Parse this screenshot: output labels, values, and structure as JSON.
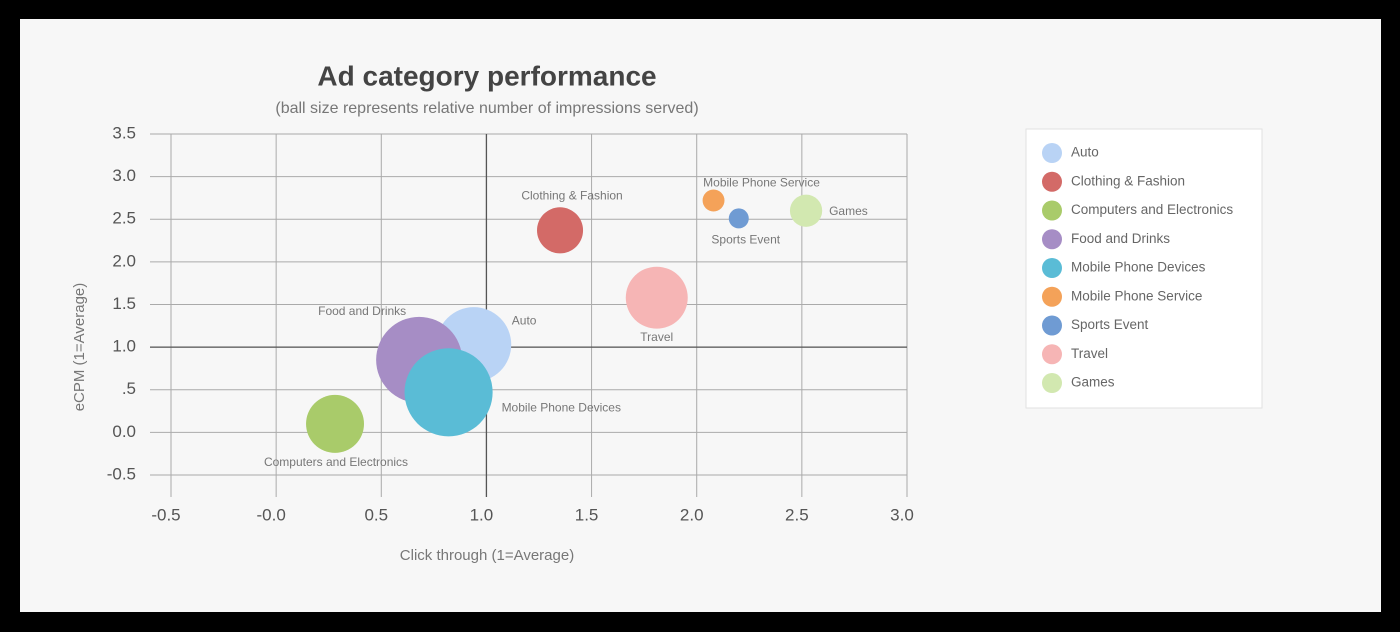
{
  "chart_data": {
    "type": "bubble",
    "title": "Ad category performance",
    "subtitle": "(ball size represents relative number of impressions served)",
    "x_label": "Click through (1=Average)",
    "y_label": "eCPM (1=Average)",
    "xlim": [
      -0.5,
      3.0
    ],
    "xticks": [
      -0.5,
      {
        "value": 0,
        "label": "-0.0"
      },
      0.5,
      {
        "value": 1,
        "label": "1.0"
      },
      1.5,
      {
        "value": 2,
        "label": "2.0"
      },
      2.5,
      {
        "value": 3,
        "label": "3.0"
      }
    ],
    "ylim": [
      -0.5,
      3.5
    ],
    "yticks": [
      -0.5,
      {
        "value": 0,
        "label": "0.0"
      },
      {
        "value": 0.5,
        "label": ".5"
      },
      {
        "value": 1,
        "label": "1.0"
      },
      1.5,
      {
        "value": 2,
        "label": "2.0"
      },
      2.5,
      {
        "value": 3,
        "label": "3.0"
      },
      3.5
    ],
    "reference_lines": {
      "x": 1,
      "y": 1
    },
    "grid": true,
    "legend": "right",
    "series": [
      {
        "name": "Auto",
        "color": "#b9d3f5",
        "x": 0.94,
        "y": 1.03,
        "size": 14
      },
      {
        "name": "Clothing & Fashion",
        "color": "#d36a67",
        "x": 1.35,
        "y": 2.37,
        "size": 5.3
      },
      {
        "name": "Computers and Electronics",
        "color": "#a9cb6a",
        "x": 0.28,
        "y": 0.1,
        "size": 8.4
      },
      {
        "name": "Food and Drinks",
        "color": "#a68dc5",
        "x": 0.68,
        "y": 0.85,
        "size": 18.5
      },
      {
        "name": "Mobile Phone Devices",
        "color": "#5abcd6",
        "x": 0.82,
        "y": 0.47,
        "size": 19.4
      },
      {
        "name": "Mobile Phone Service",
        "color": "#f4a259",
        "x": 2.08,
        "y": 2.72,
        "size": 1.2
      },
      {
        "name": "Sports Event",
        "color": "#6f9bd3",
        "x": 2.2,
        "y": 2.51,
        "size": 1
      },
      {
        "name": "Travel",
        "color": "#f6b5b5",
        "x": 1.81,
        "y": 1.58,
        "size": 9.6
      },
      {
        "name": "Games",
        "color": "#d2e8b0",
        "x": 2.52,
        "y": 2.6,
        "size": 2.6
      }
    ]
  }
}
